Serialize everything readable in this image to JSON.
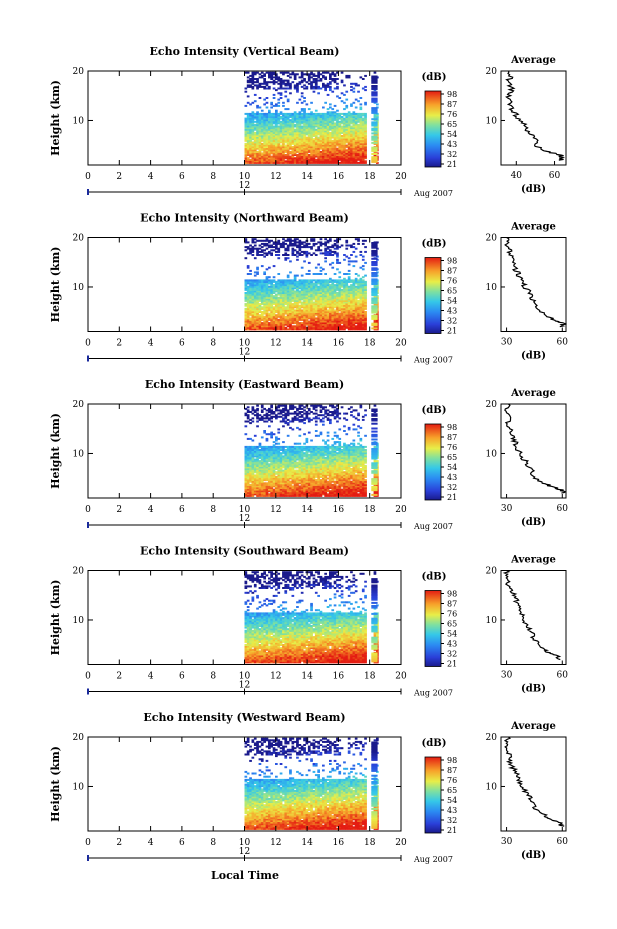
{
  "figure": {
    "xlabel": "Local Time",
    "date_label": "Aug 2007",
    "day_label": "12",
    "ylabel": "Height (km)",
    "cb_unit": "(dB)",
    "avg_title": "Average",
    "avg_xlabel": "(dB)"
  },
  "chart_data": [
    {
      "type": "heatmap",
      "title": "Echo Intensity (Vertical Beam)",
      "xlabel": "Local Time",
      "ylabel": "Height (km)",
      "xlim": [
        0,
        20
      ],
      "ylim": [
        1,
        20
      ],
      "xticks": [
        "0",
        "2",
        "4",
        "6",
        "8",
        "10",
        "12",
        "14",
        "16",
        "18",
        "20"
      ],
      "yticks": [
        "10",
        "20"
      ],
      "data_time_range": [
        10,
        18.5
      ],
      "data_gap_time": [
        17.7,
        18.1
      ],
      "colorbar": {
        "unit": "(dB)",
        "ticks": [
          "21",
          "32",
          "43",
          "54",
          "65",
          "76",
          "87",
          "98"
        ]
      },
      "avg_profile": {
        "title": "Average",
        "xlabel": "(dB)",
        "xlim": [
          32,
          66
        ],
        "xticks": [
          "40",
          "60"
        ],
        "yticks": [
          "10",
          "20"
        ],
        "height": [
          2,
          2.5,
          3,
          3.5,
          4,
          5,
          6,
          7,
          8,
          9,
          10,
          11,
          12,
          13,
          14,
          15,
          16,
          17,
          18,
          19,
          20
        ],
        "db": [
          63,
          64,
          63,
          58,
          55,
          50,
          51,
          48,
          46,
          45,
          42,
          40,
          38,
          37,
          37,
          36,
          38,
          37,
          36,
          37,
          36
        ]
      }
    },
    {
      "type": "heatmap",
      "title": "Echo Intensity (Northward Beam)",
      "xlabel": "Local Time",
      "ylabel": "Height (km)",
      "xlim": [
        0,
        20
      ],
      "ylim": [
        1,
        20
      ],
      "xticks": [
        "0",
        "2",
        "4",
        "6",
        "8",
        "10",
        "12",
        "14",
        "16",
        "18",
        "20"
      ],
      "yticks": [
        "10",
        "20"
      ],
      "data_time_range": [
        10,
        18.5
      ],
      "data_gap_time": [
        17.7,
        18.1
      ],
      "colorbar": {
        "unit": "(dB)",
        "ticks": [
          "21",
          "32",
          "43",
          "54",
          "65",
          "76",
          "87",
          "98"
        ]
      },
      "avg_profile": {
        "title": "Average",
        "xlabel": "(dB)",
        "xlim": [
          27,
          62
        ],
        "xticks": [
          "30",
          "60"
        ],
        "yticks": [
          "10",
          "20"
        ],
        "height": [
          2,
          2.5,
          3,
          3.5,
          4,
          5,
          6,
          7,
          8,
          9,
          10,
          11,
          12,
          13,
          14,
          15,
          16,
          17,
          18,
          19,
          20
        ],
        "db": [
          60,
          61,
          58,
          55,
          52,
          48,
          46,
          45,
          43,
          42,
          40,
          38,
          37,
          36,
          34,
          34,
          33,
          32,
          31,
          30,
          30
        ]
      }
    },
    {
      "type": "heatmap",
      "title": "Echo Intensity (Eastward Beam)",
      "xlabel": "Local Time",
      "ylabel": "Height (km)",
      "xlim": [
        0,
        20
      ],
      "ylim": [
        1,
        20
      ],
      "xticks": [
        "0",
        "2",
        "4",
        "6",
        "8",
        "10",
        "12",
        "14",
        "16",
        "18",
        "20"
      ],
      "yticks": [
        "10",
        "20"
      ],
      "data_time_range": [
        10,
        18.5
      ],
      "data_gap_time": [
        17.7,
        18.1
      ],
      "colorbar": {
        "unit": "(dB)",
        "ticks": [
          "21",
          "32",
          "43",
          "54",
          "65",
          "76",
          "87",
          "98"
        ]
      },
      "avg_profile": {
        "title": "Average",
        "xlabel": "(dB)",
        "xlim": [
          27,
          62
        ],
        "xticks": [
          "30",
          "60"
        ],
        "yticks": [
          "10",
          "20"
        ],
        "height": [
          2,
          2.5,
          3,
          3.5,
          4,
          5,
          6,
          7,
          8,
          9,
          10,
          11,
          12,
          13,
          14,
          15,
          16,
          17,
          18,
          19,
          20
        ],
        "db": [
          61,
          60,
          57,
          53,
          50,
          46,
          44,
          43,
          41,
          39,
          37,
          36,
          35,
          34,
          33,
          32,
          31,
          31,
          30,
          30,
          31
        ]
      }
    },
    {
      "type": "heatmap",
      "title": "Echo Intensity (Southward Beam)",
      "xlabel": "Local Time",
      "ylabel": "Height (km)",
      "xlim": [
        0,
        20
      ],
      "ylim": [
        1,
        20
      ],
      "xticks": [
        "0",
        "2",
        "4",
        "6",
        "8",
        "10",
        "12",
        "14",
        "16",
        "18",
        "20"
      ],
      "yticks": [
        "10",
        "20"
      ],
      "data_time_range": [
        10,
        18.5
      ],
      "data_gap_time": [
        17.7,
        18.1
      ],
      "colorbar": {
        "unit": "(dB)",
        "ticks": [
          "21",
          "32",
          "43",
          "54",
          "65",
          "76",
          "87",
          "98"
        ]
      },
      "avg_profile": {
        "title": "Average",
        "xlabel": "(dB)",
        "xlim": [
          27,
          62
        ],
        "xticks": [
          "30",
          "60"
        ],
        "yticks": [
          "10",
          "20"
        ],
        "height": [
          2,
          2.5,
          3,
          3.5,
          4,
          5,
          6,
          7,
          8,
          9,
          10,
          11,
          12,
          13,
          14,
          15,
          16,
          17,
          18,
          19,
          20
        ],
        "db": [
          59,
          58,
          55,
          52,
          50,
          47,
          45,
          44,
          42,
          41,
          39,
          38,
          37,
          36,
          35,
          34,
          32,
          31,
          30,
          30,
          30
        ]
      }
    },
    {
      "type": "heatmap",
      "title": "Echo Intensity (Westward Beam)",
      "xlabel": "Local Time",
      "ylabel": "Height (km)",
      "xlim": [
        0,
        20
      ],
      "ylim": [
        1,
        20
      ],
      "xticks": [
        "0",
        "2",
        "4",
        "6",
        "8",
        "10",
        "12",
        "14",
        "16",
        "18",
        "20"
      ],
      "yticks": [
        "10",
        "20"
      ],
      "data_time_range": [
        10,
        18.5
      ],
      "data_gap_time": [
        17.7,
        18.1
      ],
      "colorbar": {
        "unit": "(dB)",
        "ticks": [
          "21",
          "32",
          "43",
          "54",
          "65",
          "76",
          "87",
          "98"
        ]
      },
      "avg_profile": {
        "title": "Average",
        "xlabel": "(dB)",
        "xlim": [
          27,
          62
        ],
        "xticks": [
          "30",
          "60"
        ],
        "yticks": [
          "10",
          "20"
        ],
        "height": [
          2,
          2.5,
          3,
          3.5,
          4,
          5,
          6,
          7,
          8,
          9,
          10,
          11,
          12,
          13,
          14,
          15,
          16,
          17,
          18,
          19,
          20
        ],
        "db": [
          60,
          59,
          56,
          53,
          51,
          47,
          45,
          43,
          42,
          40,
          38,
          37,
          36,
          35,
          33,
          32,
          32,
          31,
          30,
          30,
          31
        ]
      }
    }
  ]
}
